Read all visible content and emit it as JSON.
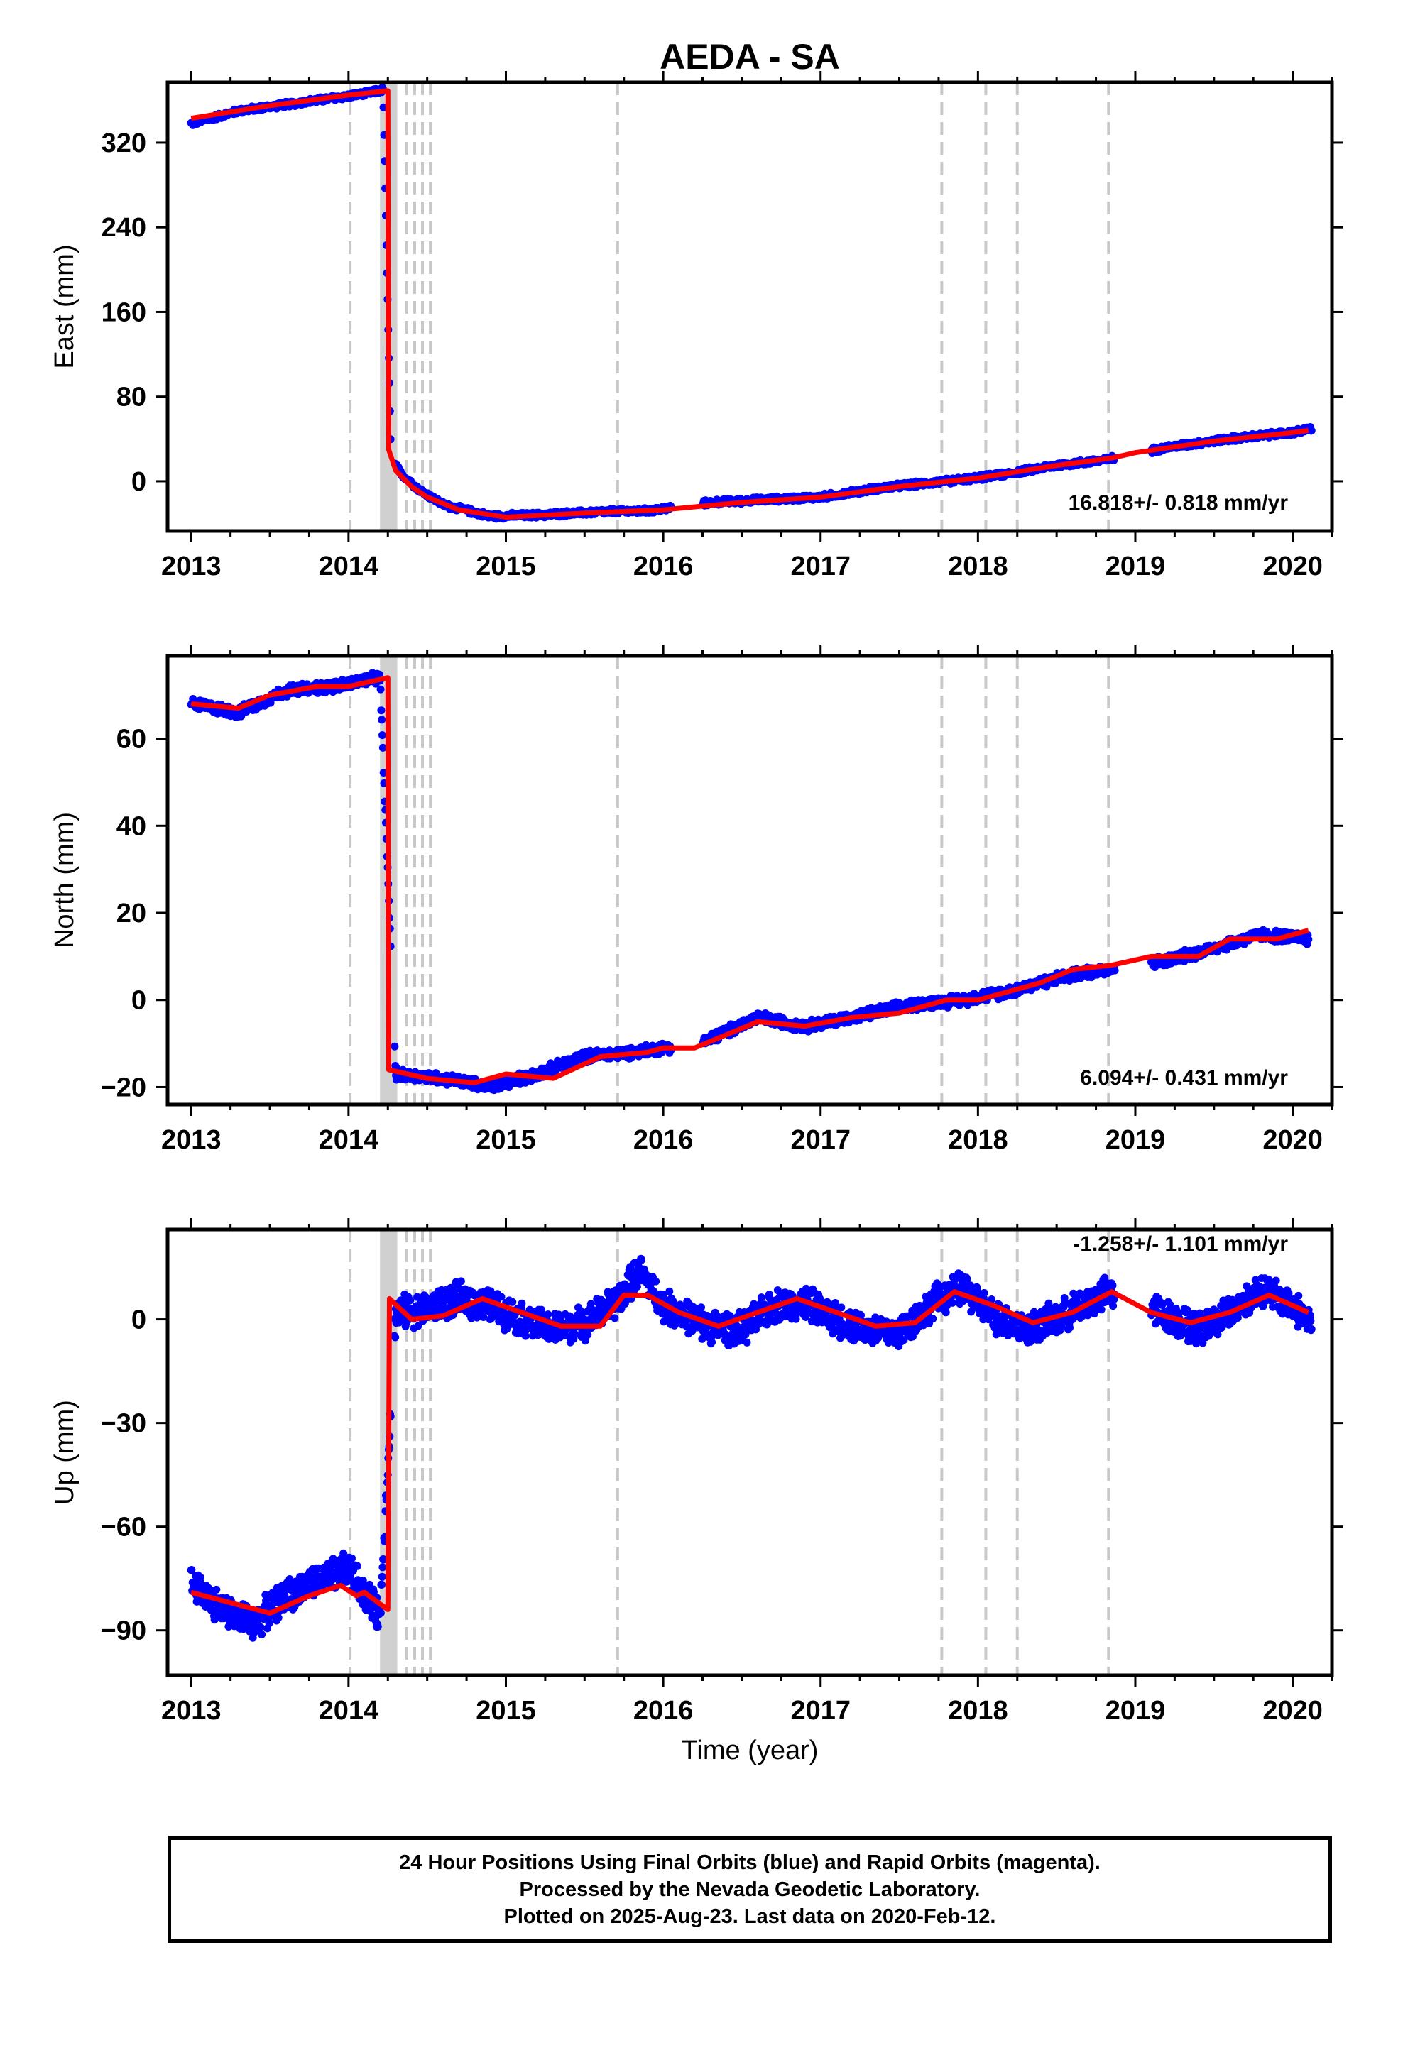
{
  "title": "AEDA - SA",
  "xlabel": "Time (year)",
  "colors": {
    "final_orbits": "#0000ff",
    "model": "#ff0000",
    "events": "#c8c8c8",
    "frame": "#000000"
  },
  "footer": {
    "line1": "24 Hour Positions Using Final Orbits (blue) and Rapid Orbits (magenta).",
    "line2": "Processed by the Nevada Geodetic Laboratory.",
    "line3": "Plotted on 2025-Aug-23. Last data on 2020-Feb-12."
  },
  "chart_data": [
    {
      "type": "scatter",
      "ylabel": "East (mm)",
      "rate_text": "16.818+/- 0.818 mm/yr",
      "xlim": [
        2012.85,
        2020.25
      ],
      "ylim": [
        -47,
        377
      ],
      "x_ticks": [
        2013,
        2014,
        2015,
        2016,
        2017,
        2018,
        2019,
        2020
      ],
      "y_ticks": [
        0,
        80,
        160,
        240,
        320
      ],
      "event_lines": [
        2014.01,
        2014.37,
        2014.42,
        2014.47,
        2014.52,
        2015.71,
        2017.77,
        2018.05,
        2018.25,
        2018.83
      ],
      "event_band": [
        2014.2,
        2014.31
      ],
      "model": [
        [
          2013.0,
          343
        ],
        [
          2013.5,
          355
        ],
        [
          2014.0,
          365
        ],
        [
          2014.25,
          369
        ],
        [
          2014.255,
          30
        ],
        [
          2014.3,
          10
        ],
        [
          2014.4,
          -5
        ],
        [
          2014.5,
          -15
        ],
        [
          2014.7,
          -27
        ],
        [
          2015.0,
          -34
        ],
        [
          2015.5,
          -30
        ],
        [
          2016.0,
          -27
        ],
        [
          2016.5,
          -20
        ],
        [
          2017.0,
          -15
        ],
        [
          2017.5,
          -5
        ],
        [
          2018.0,
          3
        ],
        [
          2018.5,
          15
        ],
        [
          2018.85,
          22
        ],
        [
          2019.0,
          27
        ],
        [
          2019.5,
          38
        ],
        [
          2020.0,
          46
        ],
        [
          2020.1,
          48
        ]
      ],
      "observations": [
        [
          2013.0,
          338
        ],
        [
          2013.3,
          350
        ],
        [
          2013.6,
          356
        ],
        [
          2013.9,
          362
        ],
        [
          2014.1,
          366
        ],
        [
          2014.22,
          370
        ],
        [
          2014.27,
          20
        ],
        [
          2014.35,
          5
        ],
        [
          2014.45,
          -8
        ],
        [
          2014.6,
          -22
        ],
        [
          2014.9,
          -33
        ],
        [
          2015.2,
          -32
        ],
        [
          2015.6,
          -29
        ],
        [
          2015.9,
          -28
        ],
        [
          2016.3,
          -20
        ],
        [
          2016.7,
          -17
        ],
        [
          2017.0,
          -15
        ],
        [
          2017.4,
          -6
        ],
        [
          2017.8,
          0
        ],
        [
          2018.1,
          5
        ],
        [
          2018.5,
          15
        ],
        [
          2018.8,
          20
        ],
        [
          2019.2,
          32
        ],
        [
          2019.6,
          40
        ],
        [
          2020.0,
          46
        ],
        [
          2020.12,
          50
        ]
      ]
    },
    {
      "type": "scatter",
      "ylabel": "North (mm)",
      "rate_text": "6.094+/- 0.431 mm/yr",
      "xlim": [
        2012.85,
        2020.25
      ],
      "ylim": [
        -24,
        79
      ],
      "x_ticks": [
        2013,
        2014,
        2015,
        2016,
        2017,
        2018,
        2019,
        2020
      ],
      "y_ticks": [
        -20,
        0,
        20,
        40,
        60
      ],
      "event_lines": [
        2014.01,
        2014.37,
        2014.42,
        2014.47,
        2014.52,
        2015.71,
        2017.77,
        2018.05,
        2018.25,
        2018.83
      ],
      "event_band": [
        2014.2,
        2014.31
      ],
      "model": [
        [
          2013.0,
          68
        ],
        [
          2013.3,
          67
        ],
        [
          2013.5,
          70
        ],
        [
          2013.8,
          72
        ],
        [
          2014.0,
          72
        ],
        [
          2014.25,
          74
        ],
        [
          2014.255,
          -16
        ],
        [
          2014.5,
          -18
        ],
        [
          2014.8,
          -19
        ],
        [
          2015.0,
          -17
        ],
        [
          2015.3,
          -18
        ],
        [
          2015.6,
          -13
        ],
        [
          2015.9,
          -12
        ],
        [
          2016.0,
          -11
        ],
        [
          2016.2,
          -11
        ],
        [
          2016.4,
          -8
        ],
        [
          2016.6,
          -5
        ],
        [
          2016.9,
          -6
        ],
        [
          2017.2,
          -4
        ],
        [
          2017.5,
          -3
        ],
        [
          2017.8,
          0
        ],
        [
          2018.0,
          0
        ],
        [
          2018.2,
          2
        ],
        [
          2018.4,
          4
        ],
        [
          2018.6,
          7
        ],
        [
          2018.85,
          8
        ],
        [
          2019.1,
          10
        ],
        [
          2019.4,
          10
        ],
        [
          2019.6,
          14
        ],
        [
          2019.9,
          14
        ],
        [
          2020.1,
          16
        ]
      ],
      "observations": [
        [
          2013.0,
          68
        ],
        [
          2013.3,
          66
        ],
        [
          2013.6,
          71
        ],
        [
          2013.9,
          72
        ],
        [
          2014.2,
          74
        ],
        [
          2014.3,
          -17
        ],
        [
          2014.6,
          -18
        ],
        [
          2014.9,
          -20
        ],
        [
          2015.2,
          -17
        ],
        [
          2015.5,
          -13
        ],
        [
          2015.8,
          -12
        ],
        [
          2016.0,
          -11
        ],
        [
          2016.3,
          -9
        ],
        [
          2016.6,
          -4
        ],
        [
          2016.9,
          -6
        ],
        [
          2017.2,
          -4
        ],
        [
          2017.6,
          -1
        ],
        [
          2017.9,
          0
        ],
        [
          2018.2,
          2
        ],
        [
          2018.5,
          5
        ],
        [
          2018.8,
          7
        ],
        [
          2019.2,
          9
        ],
        [
          2019.5,
          12
        ],
        [
          2019.8,
          15
        ],
        [
          2020.1,
          14
        ]
      ]
    },
    {
      "type": "scatter",
      "ylabel": "Up (mm)",
      "rate_text": "-1.258+/- 1.101 mm/yr",
      "xlim": [
        2012.85,
        2020.25
      ],
      "ylim": [
        -103,
        26
      ],
      "x_ticks": [
        2013,
        2014,
        2015,
        2016,
        2017,
        2018,
        2019,
        2020
      ],
      "y_ticks": [
        -90,
        -60,
        -30,
        0
      ],
      "event_lines": [
        2014.01,
        2014.37,
        2014.42,
        2014.47,
        2014.52,
        2015.71,
        2017.77,
        2018.05,
        2018.25,
        2018.83
      ],
      "event_band": [
        2014.2,
        2014.31
      ],
      "model": [
        [
          2013.0,
          -79
        ],
        [
          2013.25,
          -82
        ],
        [
          2013.5,
          -85
        ],
        [
          2013.75,
          -80
        ],
        [
          2013.95,
          -77
        ],
        [
          2014.05,
          -80
        ],
        [
          2014.1,
          -79
        ],
        [
          2014.25,
          -84
        ],
        [
          2014.26,
          6
        ],
        [
          2014.4,
          0
        ],
        [
          2014.6,
          1
        ],
        [
          2014.85,
          6
        ],
        [
          2015.1,
          2
        ],
        [
          2015.35,
          -2
        ],
        [
          2015.6,
          -2
        ],
        [
          2015.75,
          7
        ],
        [
          2015.9,
          7
        ],
        [
          2016.1,
          2
        ],
        [
          2016.35,
          -2
        ],
        [
          2016.6,
          2
        ],
        [
          2016.85,
          6
        ],
        [
          2017.1,
          2
        ],
        [
          2017.35,
          -2
        ],
        [
          2017.6,
          -1
        ],
        [
          2017.85,
          8
        ],
        [
          2018.1,
          4
        ],
        [
          2018.35,
          -1
        ],
        [
          2018.6,
          2
        ],
        [
          2018.85,
          8
        ],
        [
          2019.1,
          2
        ],
        [
          2019.35,
          -1
        ],
        [
          2019.6,
          2
        ],
        [
          2019.85,
          7
        ],
        [
          2020.1,
          2
        ]
      ],
      "observations": [
        [
          2013.0,
          -76
        ],
        [
          2013.2,
          -84
        ],
        [
          2013.4,
          -88
        ],
        [
          2013.6,
          -80
        ],
        [
          2013.8,
          -76
        ],
        [
          2014.0,
          -72
        ],
        [
          2014.2,
          -86
        ],
        [
          2014.3,
          2
        ],
        [
          2014.5,
          3
        ],
        [
          2014.7,
          6
        ],
        [
          2014.9,
          4
        ],
        [
          2015.1,
          0
        ],
        [
          2015.3,
          -3
        ],
        [
          2015.5,
          -1
        ],
        [
          2015.7,
          5
        ],
        [
          2015.85,
          14
        ],
        [
          2016.0,
          4
        ],
        [
          2016.3,
          -2
        ],
        [
          2016.5,
          -3
        ],
        [
          2016.7,
          4
        ],
        [
          2016.9,
          5
        ],
        [
          2017.1,
          0
        ],
        [
          2017.3,
          -3
        ],
        [
          2017.5,
          -4
        ],
        [
          2017.75,
          6
        ],
        [
          2017.9,
          9
        ],
        [
          2018.1,
          1
        ],
        [
          2018.3,
          -3
        ],
        [
          2018.5,
          0
        ],
        [
          2018.7,
          5
        ],
        [
          2018.85,
          8
        ],
        [
          2019.2,
          1
        ],
        [
          2019.4,
          -3
        ],
        [
          2019.6,
          2
        ],
        [
          2019.8,
          9
        ],
        [
          2020.0,
          4
        ],
        [
          2020.12,
          -1
        ]
      ]
    }
  ]
}
